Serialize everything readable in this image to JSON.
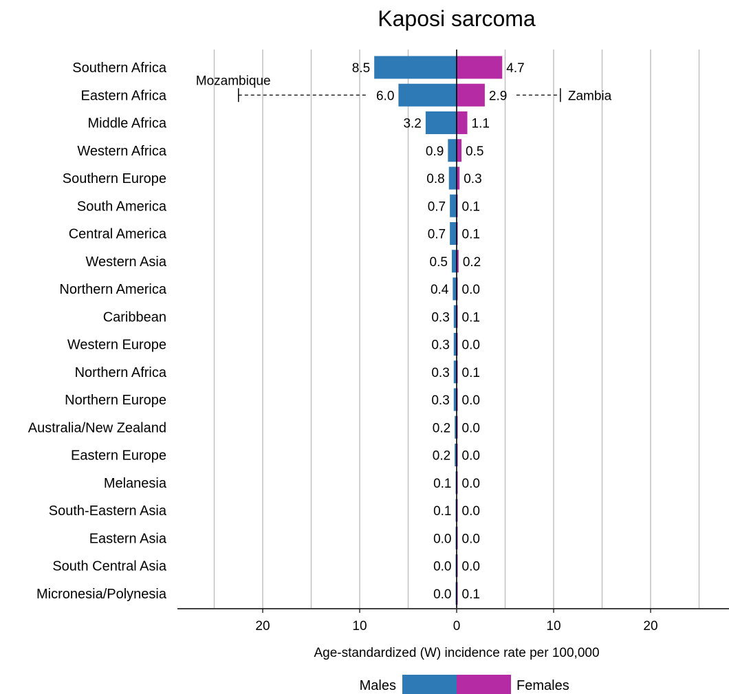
{
  "chart_data": {
    "type": "bar",
    "title": "Kaposi sarcoma",
    "xlabel": "Age-standardized (W) incidence rate per 100,000",
    "xlim": [
      -25,
      25
    ],
    "x_ticks": [
      20,
      10,
      0,
      10,
      20
    ],
    "grid": true,
    "legend": {
      "position": "bottom",
      "left_label": "Males",
      "right_label": "Females"
    },
    "colors": {
      "males": "#2d7ab6",
      "females": "#b52ba3"
    },
    "categories": [
      "Southern Africa",
      "Eastern Africa",
      "Middle Africa",
      "Western Africa",
      "Southern Europe",
      "South America",
      "Central America",
      "Western Asia",
      "Northern America",
      "Caribbean",
      "Western Europe",
      "Northern Africa",
      "Northern Europe",
      "Australia/New Zealand",
      "Eastern Europe",
      "Melanesia",
      "South-Eastern Asia",
      "Eastern Asia",
      "South Central Asia",
      "Micronesia/Polynesia"
    ],
    "series": [
      {
        "name": "Males",
        "values": [
          8.5,
          6.0,
          3.2,
          0.9,
          0.8,
          0.7,
          0.7,
          0.5,
          0.4,
          0.3,
          0.3,
          0.3,
          0.3,
          0.2,
          0.2,
          0.1,
          0.1,
          0.0,
          0.0,
          0.0
        ],
        "labels": [
          "8.5",
          "6.0",
          "3.2",
          "0.9",
          "0.8",
          "0.7",
          "0.7",
          "0.5",
          "0.4",
          "0.3",
          "0.3",
          "0.3",
          "0.3",
          "0.2",
          "0.2",
          "0.1",
          "0.1",
          "0.0",
          "0.0",
          "0.0"
        ]
      },
      {
        "name": "Females",
        "values": [
          4.7,
          2.9,
          1.1,
          0.5,
          0.3,
          0.1,
          0.1,
          0.2,
          0.0,
          0.1,
          0.0,
          0.1,
          0.0,
          0.0,
          0.0,
          0.0,
          0.0,
          0.0,
          0.0,
          0.1
        ],
        "labels": [
          "4.7",
          "2.9",
          "1.1",
          "0.5",
          "0.3",
          "0.1",
          "0.1",
          "0.2",
          "0.0",
          "0.1",
          "0.0",
          "0.1",
          "0.0",
          "0.0",
          "0.0",
          "0.0",
          "0.0",
          "0.0",
          "0.0",
          "0.1"
        ]
      }
    ],
    "annotations": [
      {
        "category": "Eastern Africa",
        "side": "males",
        "label": "Mozambique",
        "value": 22.5
      },
      {
        "category": "Eastern Africa",
        "side": "females",
        "label": "Zambia",
        "value": 10.7
      }
    ]
  }
}
